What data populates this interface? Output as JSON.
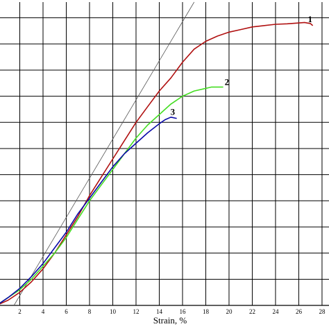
{
  "chart_data": {
    "type": "line",
    "title": "",
    "xlabel": "Strain, %",
    "ylabel": "",
    "xlim": [
      0,
      28.6
    ],
    "ylim": [
      0,
      11.6
    ],
    "grid": true,
    "x_ticks": [
      2,
      4,
      6,
      8,
      10,
      12,
      14,
      16,
      18,
      20,
      22,
      24,
      26,
      28
    ],
    "x_tick_labels": [
      "2",
      "4",
      "6",
      "8",
      "10",
      "12",
      "14",
      "16",
      "18",
      "20",
      "22",
      "24",
      "26",
      "28"
    ],
    "y_gridlines": [
      1,
      2,
      3,
      4,
      5,
      6,
      7,
      8,
      9,
      10,
      11
    ],
    "tangent_line": {
      "color": "#555555",
      "from": [
        1.5,
        0
      ],
      "to": [
        17.0,
        11.6
      ]
    },
    "series": [
      {
        "name": "1",
        "color": "#b01010",
        "x": [
          0,
          1,
          2,
          3,
          4,
          5,
          6,
          7,
          8,
          9,
          10,
          11,
          12,
          13,
          14,
          15,
          16,
          17,
          18,
          19,
          20,
          21,
          22,
          23,
          24,
          25,
          26,
          26.5,
          27,
          27.2
        ],
        "y": [
          0.0,
          0.2,
          0.5,
          0.9,
          1.4,
          2.0,
          2.7,
          3.4,
          4.2,
          4.9,
          5.6,
          6.3,
          7.0,
          7.6,
          8.2,
          8.7,
          9.3,
          9.8,
          10.1,
          10.3,
          10.45,
          10.55,
          10.65,
          10.7,
          10.75,
          10.77,
          10.8,
          10.82,
          10.78,
          10.7
        ]
      },
      {
        "name": "2",
        "color": "#44dd22",
        "x": [
          0,
          1,
          2,
          3,
          4,
          5,
          6,
          7,
          8,
          9,
          10,
          11,
          12,
          13,
          14,
          15,
          16,
          17,
          18,
          18.5,
          19,
          19.5
        ],
        "y": [
          0.0,
          0.3,
          0.6,
          1.0,
          1.5,
          2.0,
          2.6,
          3.3,
          4.0,
          4.6,
          5.2,
          5.8,
          6.4,
          6.9,
          7.3,
          7.7,
          8.0,
          8.2,
          8.3,
          8.35,
          8.35,
          8.35
        ]
      },
      {
        "name": "3",
        "color": "#0a0aa8",
        "x": [
          0,
          1,
          2,
          3,
          4,
          5,
          6,
          7,
          8,
          9,
          10,
          11,
          12,
          13,
          14,
          14.5,
          15,
          15.5
        ],
        "y": [
          0.0,
          0.3,
          0.65,
          1.1,
          1.6,
          2.2,
          2.8,
          3.5,
          4.1,
          4.7,
          5.3,
          5.8,
          6.2,
          6.6,
          6.95,
          7.1,
          7.2,
          7.15
        ]
      }
    ]
  }
}
